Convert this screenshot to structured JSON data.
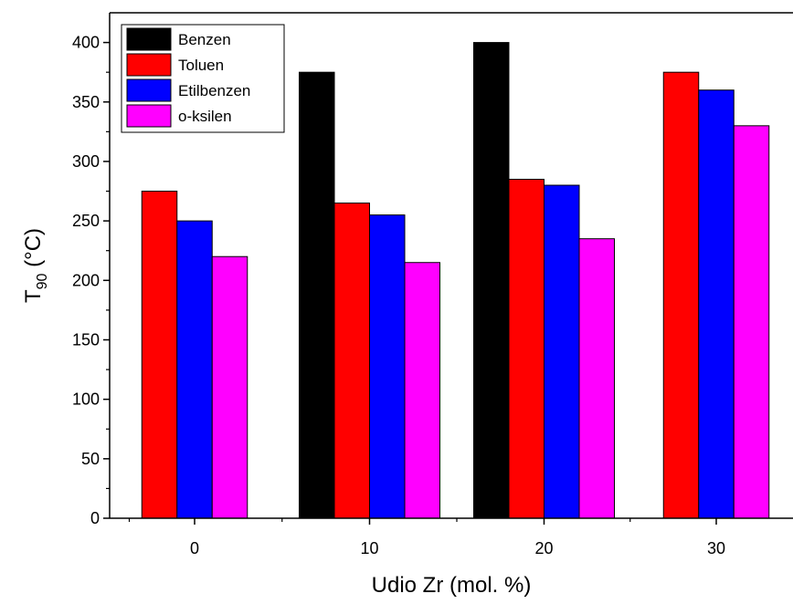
{
  "chart_data": {
    "type": "bar",
    "title": "",
    "xlabel": "Udio Zr (mol. %)",
    "ylabel": {
      "main": "T",
      "sub": "90",
      "unit": " (°C)"
    },
    "categories": [
      "0",
      "10",
      "20",
      "30"
    ],
    "ylim": [
      0,
      425
    ],
    "yticks": [
      0,
      50,
      100,
      150,
      200,
      250,
      300,
      350,
      400
    ],
    "ytick_labels": [
      "0",
      "50",
      "100",
      "150",
      "200",
      "250",
      "300",
      "350",
      "400"
    ],
    "grid": false,
    "legend": {
      "position": "top-left"
    },
    "series": [
      {
        "name": "Benzen",
        "color": "#000000",
        "values": [
          null,
          375,
          400,
          null
        ]
      },
      {
        "name": "Toluen",
        "color": "#ff0000",
        "values": [
          275,
          265,
          285,
          375
        ]
      },
      {
        "name": "Etilbenzen",
        "color": "#0000ff",
        "values": [
          250,
          255,
          280,
          360
        ]
      },
      {
        "name": "o-ksilen",
        "color": "#ff00ff",
        "values": [
          220,
          215,
          235,
          330
        ]
      }
    ]
  }
}
